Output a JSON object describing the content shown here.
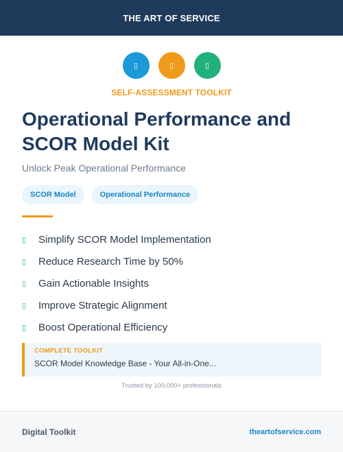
{
  "header": {
    "brand": "THE ART OF SERVICE"
  },
  "icons": [
    {
      "name": "blue-circle-icon",
      "glyph": "▯",
      "color": "#1a9ad6"
    },
    {
      "name": "orange-circle-icon",
      "glyph": "▯",
      "color": "#ef9a1a"
    },
    {
      "name": "green-circle-icon",
      "glyph": "▯",
      "color": "#22b07d"
    }
  ],
  "kicker": "SELF-ASSESSMENT TOOLKIT",
  "title": "Operational Performance and SCOR Model Kit",
  "subtitle": "Unlock Peak Operational Performance",
  "tags": [
    "SCOR Model",
    "Operational Performance"
  ],
  "features": [
    {
      "icon": "▯",
      "text": "Simplify SCOR Model Implementation"
    },
    {
      "icon": "▯",
      "text": "Reduce Research Time by 50%"
    },
    {
      "icon": "▯",
      "text": "Gain Actionable Insights"
    },
    {
      "icon": "▯",
      "text": "Improve Strategic Alignment"
    },
    {
      "icon": "▯",
      "text": "Boost Operational Efficiency"
    }
  ],
  "toolkit": {
    "label": "COMPLETE TOOLKIT",
    "description": "SCOR Model Knowledge Base - Your All-in-One..."
  },
  "trusted": "Trusted by 100,000+ professionals",
  "footer": {
    "left": "Digital Toolkit",
    "right": "theartofservice.com"
  },
  "colors": {
    "navy": "#1f3b5c",
    "orange": "#ef9a1a",
    "blue": "#1a9ad6",
    "green": "#22b07d"
  }
}
